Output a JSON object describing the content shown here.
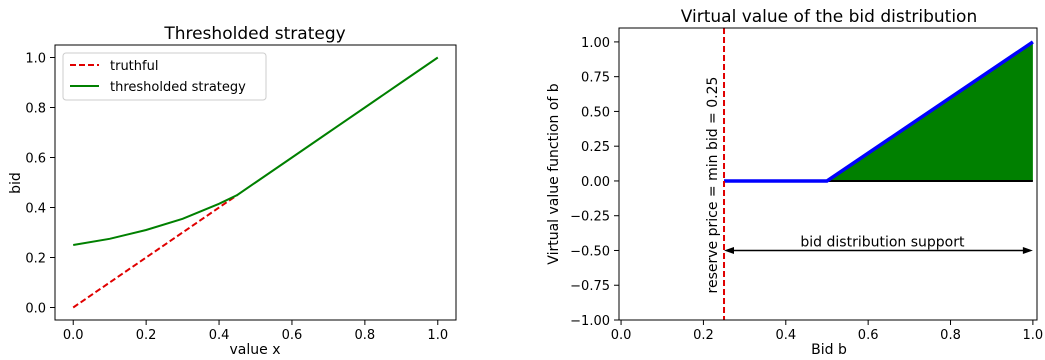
{
  "chart_data": [
    {
      "type": "line",
      "title": "Thresholded strategy",
      "xlabel": "value x",
      "ylabel": "bid",
      "xlim": [
        -0.05,
        1.05
      ],
      "ylim": [
        -0.05,
        1.05
      ],
      "xticks": [
        "0.0",
        "0.2",
        "0.4",
        "0.6",
        "0.8",
        "1.0"
      ],
      "yticks": [
        "0.0",
        "0.2",
        "0.4",
        "0.6",
        "0.8",
        "1.0"
      ],
      "legend_position": "top-left",
      "series": [
        {
          "name": "truthful",
          "color": "#e00000",
          "style": "dashed",
          "x": [
            0,
            0.45
          ],
          "y": [
            0,
            0.45
          ]
        },
        {
          "name": "thresholded strategy",
          "color": "#008000",
          "style": "solid",
          "x": [
            0,
            0.1,
            0.2,
            0.3,
            0.4,
            0.45,
            0.5,
            0.6,
            0.7,
            0.8,
            0.9,
            1.0
          ],
          "y": [
            0.25,
            0.275,
            0.31,
            0.355,
            0.415,
            0.45,
            0.5,
            0.6,
            0.7,
            0.8,
            0.9,
            1.0
          ]
        }
      ]
    },
    {
      "type": "line",
      "title": "Virtual value of the bid distribution",
      "xlabel": "Bid b",
      "ylabel": "Virtual value function of b",
      "xlim": [
        -0.005,
        1.01
      ],
      "ylim": [
        -1.0,
        1.1
      ],
      "xticks": [
        "0.0",
        "0.2",
        "0.4",
        "0.6",
        "0.8",
        "1.0"
      ],
      "yticks": [
        "1.00",
        "0.75",
        "0.50",
        "0.25",
        "0.00",
        "−0.25",
        "−0.50",
        "−0.75",
        "−1.00"
      ],
      "series": [
        {
          "color": "#0000ff",
          "style": "solid",
          "x": [
            0.25,
            0.5,
            1.0
          ],
          "y": [
            0,
            0,
            1.0
          ]
        }
      ],
      "filled_area": {
        "x": [
          0.5,
          1.0
        ],
        "y_top": [
          0,
          1.0
        ],
        "y_bottom": 0,
        "color": "#008000"
      },
      "zero_line": {
        "x": [
          0.25,
          1.0
        ],
        "y": 0,
        "color": "#000000"
      },
      "reserve_line": {
        "x": 0.25,
        "color": "#e00000",
        "style": "dashed",
        "label": "reserve price = min bid = 0.25"
      },
      "support_arrow": {
        "x": [
          0.25,
          1.0
        ],
        "y": -0.5,
        "label": "bid distribution support"
      }
    }
  ]
}
